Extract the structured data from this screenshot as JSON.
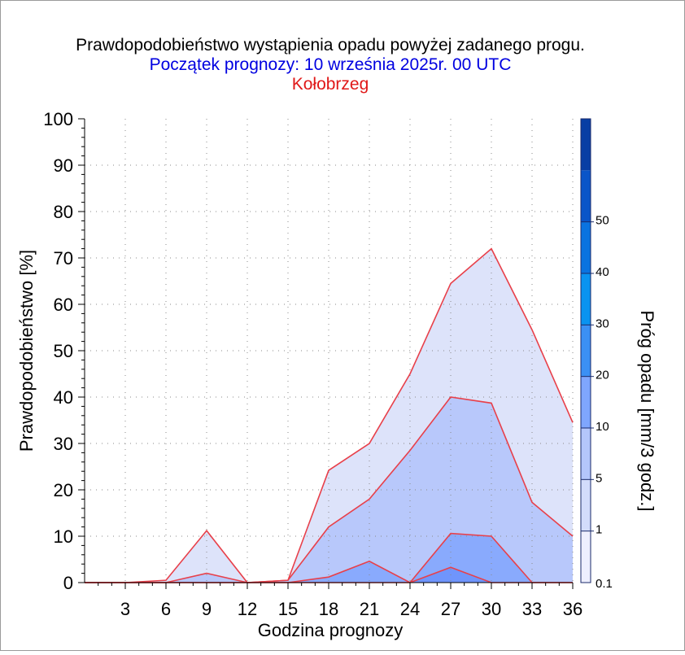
{
  "chart_data": {
    "type": "area",
    "title": "Prawdopodobieństwo wystąpienia opadu powyżej zadanego progu.",
    "subtitle": "Początek prognozy: 10 września 2025r. 00 UTC",
    "location": "Kołobrzeg",
    "xlabel": "Godzina prognozy",
    "ylabel": "Prawdopodobieństwo [%]",
    "colorbar_label": "Próg opadu [mm/3 godz.]",
    "xlim": [
      0,
      36
    ],
    "ylim": [
      0,
      100
    ],
    "x_ticks": [
      3,
      6,
      9,
      12,
      15,
      18,
      21,
      24,
      27,
      30,
      33,
      36
    ],
    "y_ticks": [
      0,
      10,
      20,
      30,
      40,
      50,
      60,
      70,
      80,
      90,
      100
    ],
    "grid": true,
    "x": [
      0,
      3,
      6,
      9,
      12,
      15,
      18,
      21,
      24,
      27,
      30,
      33,
      36
    ],
    "series": [
      {
        "threshold": 0.1,
        "color": "#dde3fa",
        "values": [
          0,
          0,
          0.5,
          11.2,
          0,
          0.5,
          24.2,
          30,
          45,
          64.5,
          72,
          54.5,
          34.5
        ]
      },
      {
        "threshold": 1,
        "color": "#b8c8fb",
        "values": [
          0,
          0,
          0,
          2,
          0,
          0.5,
          12,
          18,
          28.5,
          40,
          38.7,
          17.3,
          10
        ]
      },
      {
        "threshold": 5,
        "color": "#89aafd",
        "values": [
          0,
          0,
          0,
          0,
          0,
          0,
          1.2,
          4.6,
          0,
          10.6,
          10,
          0,
          0
        ]
      },
      {
        "threshold": 10,
        "color": "#6f95fc",
        "values": [
          0,
          0,
          0,
          0,
          0,
          0,
          0,
          0,
          0,
          3.3,
          0,
          0,
          0
        ]
      }
    ],
    "colorbar": {
      "segments": [
        {
          "from": 0.1,
          "to": 1,
          "color": "#eeeffe"
        },
        {
          "from": 1,
          "to": 5,
          "color": "#d3dcfb"
        },
        {
          "from": 5,
          "to": 10,
          "color": "#b4c6fb"
        },
        {
          "from": 10,
          "to": 20,
          "color": "#7fa6fd"
        },
        {
          "from": 20,
          "to": 30,
          "color": "#3b90f4"
        },
        {
          "from": 30,
          "to": 40,
          "color": "#0a93f0"
        },
        {
          "from": 40,
          "to": 50,
          "color": "#0a73e0"
        },
        {
          "from": 50,
          "to": 60,
          "color": "#0a55c8"
        },
        {
          "from": 60,
          "to": 70,
          "color": "#083ea4"
        }
      ],
      "labels": [
        "0.1",
        "1",
        "5",
        "10",
        "20",
        "30",
        "40",
        "50"
      ]
    },
    "colors": {
      "outline": "#e8404a",
      "title": "#000000",
      "subtitle": "#0000e0",
      "location": "#e01818"
    }
  }
}
